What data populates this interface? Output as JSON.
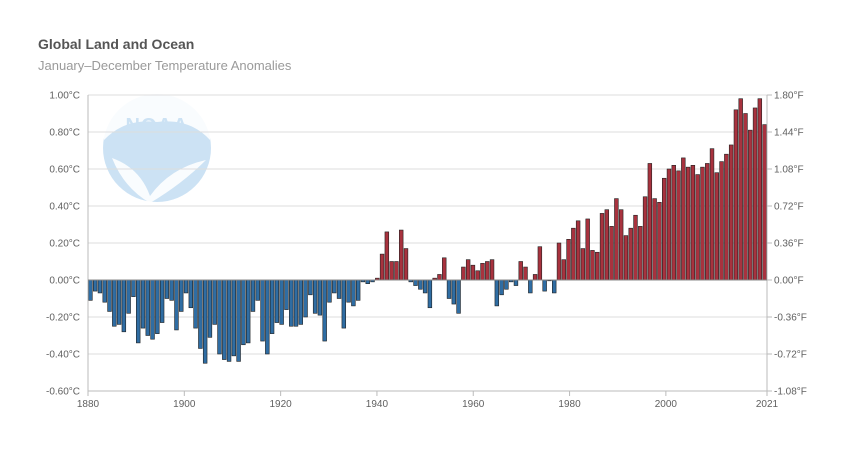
{
  "chart_data": {
    "type": "bar",
    "title": "Global Land and Ocean",
    "subtitle": "January–December Temperature Anomalies",
    "logo_text": "NOAA",
    "xlim": [
      1880,
      2021
    ],
    "ylim": [
      -0.6,
      1.0
    ],
    "y_ticks_left": [
      "1.00°C",
      "0.80°C",
      "0.60°C",
      "0.40°C",
      "0.20°C",
      "0.00°C",
      "-0.20°C",
      "-0.40°C",
      "-0.60°C"
    ],
    "y_ticks_right": [
      "1.80°F",
      "1.44°F",
      "1.08°F",
      "0.72°F",
      "0.36°F",
      "0.00°F",
      "-0.36°F",
      "-0.72°F",
      "-1.08°F"
    ],
    "x_ticks": [
      "1880",
      "1900",
      "1920",
      "1940",
      "1960",
      "1980",
      "2000",
      "2021"
    ],
    "x_tick_values": [
      1880,
      1900,
      1920,
      1940,
      1960,
      1980,
      2000,
      2021
    ],
    "colors": {
      "positive": "#a8323e",
      "negative": "#2f6da3",
      "grid": "#dddddd",
      "outline": "#222222"
    },
    "years_start": 1880,
    "values": [
      -0.11,
      -0.06,
      -0.07,
      -0.12,
      -0.17,
      -0.25,
      -0.24,
      -0.28,
      -0.18,
      -0.09,
      -0.34,
      -0.26,
      -0.3,
      -0.32,
      -0.29,
      -0.23,
      -0.1,
      -0.11,
      -0.27,
      -0.17,
      -0.07,
      -0.15,
      -0.26,
      -0.37,
      -0.45,
      -0.31,
      -0.24,
      -0.4,
      -0.43,
      -0.44,
      -0.41,
      -0.44,
      -0.35,
      -0.34,
      -0.17,
      -0.11,
      -0.33,
      -0.4,
      -0.29,
      -0.23,
      -0.24,
      -0.16,
      -0.25,
      -0.25,
      -0.24,
      -0.2,
      -0.08,
      -0.18,
      -0.19,
      -0.33,
      -0.12,
      -0.07,
      -0.1,
      -0.26,
      -0.12,
      -0.14,
      -0.11,
      -0.01,
      -0.02,
      -0.01,
      0.01,
      0.14,
      0.26,
      0.1,
      0.1,
      0.27,
      0.17,
      -0.01,
      -0.03,
      -0.05,
      -0.07,
      -0.15,
      0.01,
      0.03,
      0.12,
      -0.1,
      -0.13,
      -0.18,
      0.07,
      0.11,
      0.08,
      0.05,
      0.09,
      0.1,
      0.11,
      -0.14,
      -0.08,
      -0.05,
      -0.01,
      -0.03,
      0.1,
      0.07,
      -0.07,
      0.03,
      0.18,
      -0.06,
      0.0,
      -0.07,
      0.2,
      0.11,
      0.22,
      0.28,
      0.32,
      0.17,
      0.33,
      0.16,
      0.15,
      0.36,
      0.38,
      0.29,
      0.44,
      0.38,
      0.24,
      0.28,
      0.35,
      0.29,
      0.45,
      0.63,
      0.44,
      0.42,
      0.55,
      0.6,
      0.62,
      0.59,
      0.66,
      0.61,
      0.62,
      0.57,
      0.61,
      0.63,
      0.71,
      0.58,
      0.64,
      0.68,
      0.73,
      0.92,
      0.98,
      0.9,
      0.81,
      0.93,
      0.98,
      0.84
    ]
  }
}
